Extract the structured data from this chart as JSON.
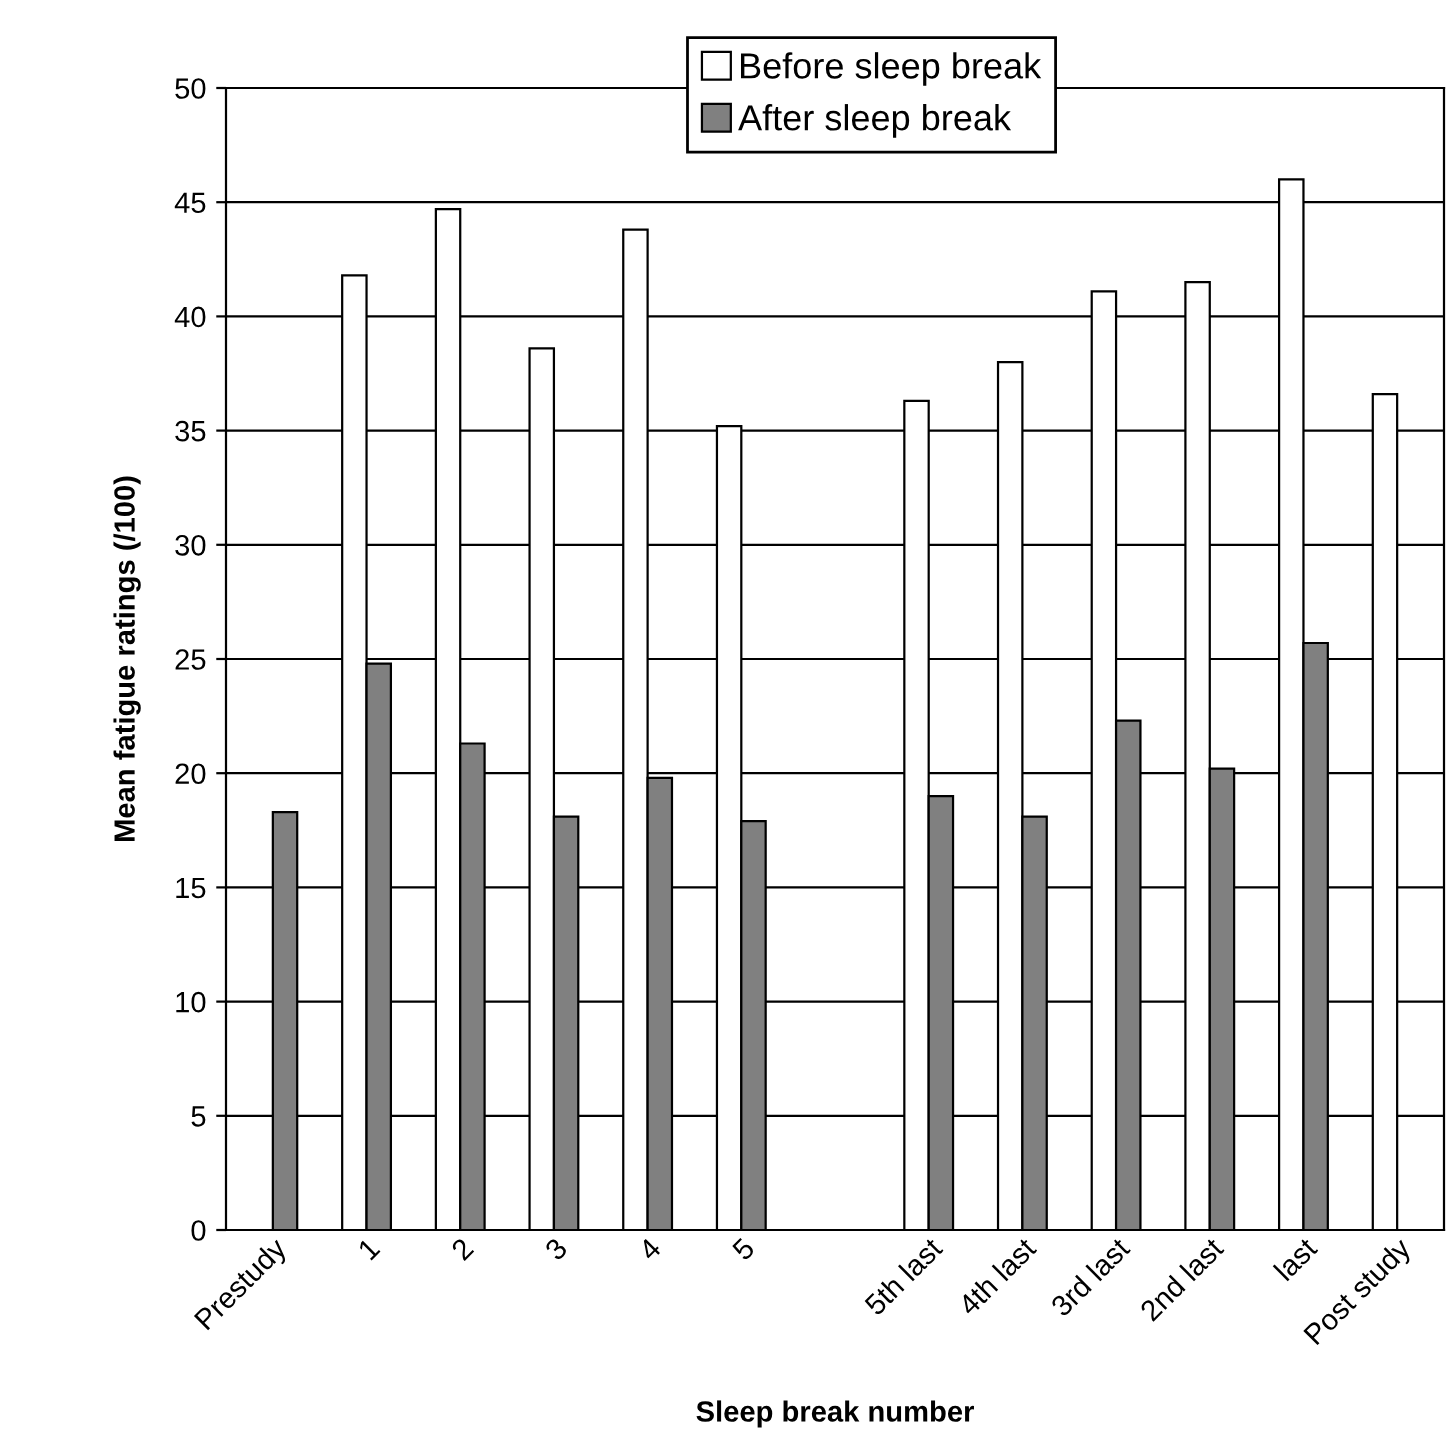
{
  "chart_data": {
    "type": "bar",
    "xlabel": "Sleep break number",
    "ylabel": "Mean fatigue ratings (/100)",
    "categories": [
      "Prestudy",
      "1",
      "2",
      "3",
      "4",
      "5",
      null,
      "5th last",
      "4th last",
      "3rd last",
      "2nd last",
      "last",
      "Post study"
    ],
    "series": [
      {
        "name": "Before sleep break",
        "color": "#ffffff",
        "values": [
          null,
          41.8,
          44.7,
          38.6,
          43.8,
          35.2,
          null,
          36.3,
          38.0,
          41.1,
          41.5,
          46.0,
          36.6
        ]
      },
      {
        "name": "After sleep break",
        "color": "#808080",
        "values": [
          18.3,
          24.8,
          21.3,
          18.1,
          19.8,
          17.9,
          null,
          19.0,
          18.1,
          22.3,
          20.2,
          25.7,
          null
        ]
      }
    ],
    "ylim": [
      0,
      50
    ],
    "yticks": [
      0,
      5,
      10,
      15,
      20,
      25,
      30,
      35,
      40,
      45,
      50
    ],
    "grid": "y",
    "legend": "top"
  }
}
